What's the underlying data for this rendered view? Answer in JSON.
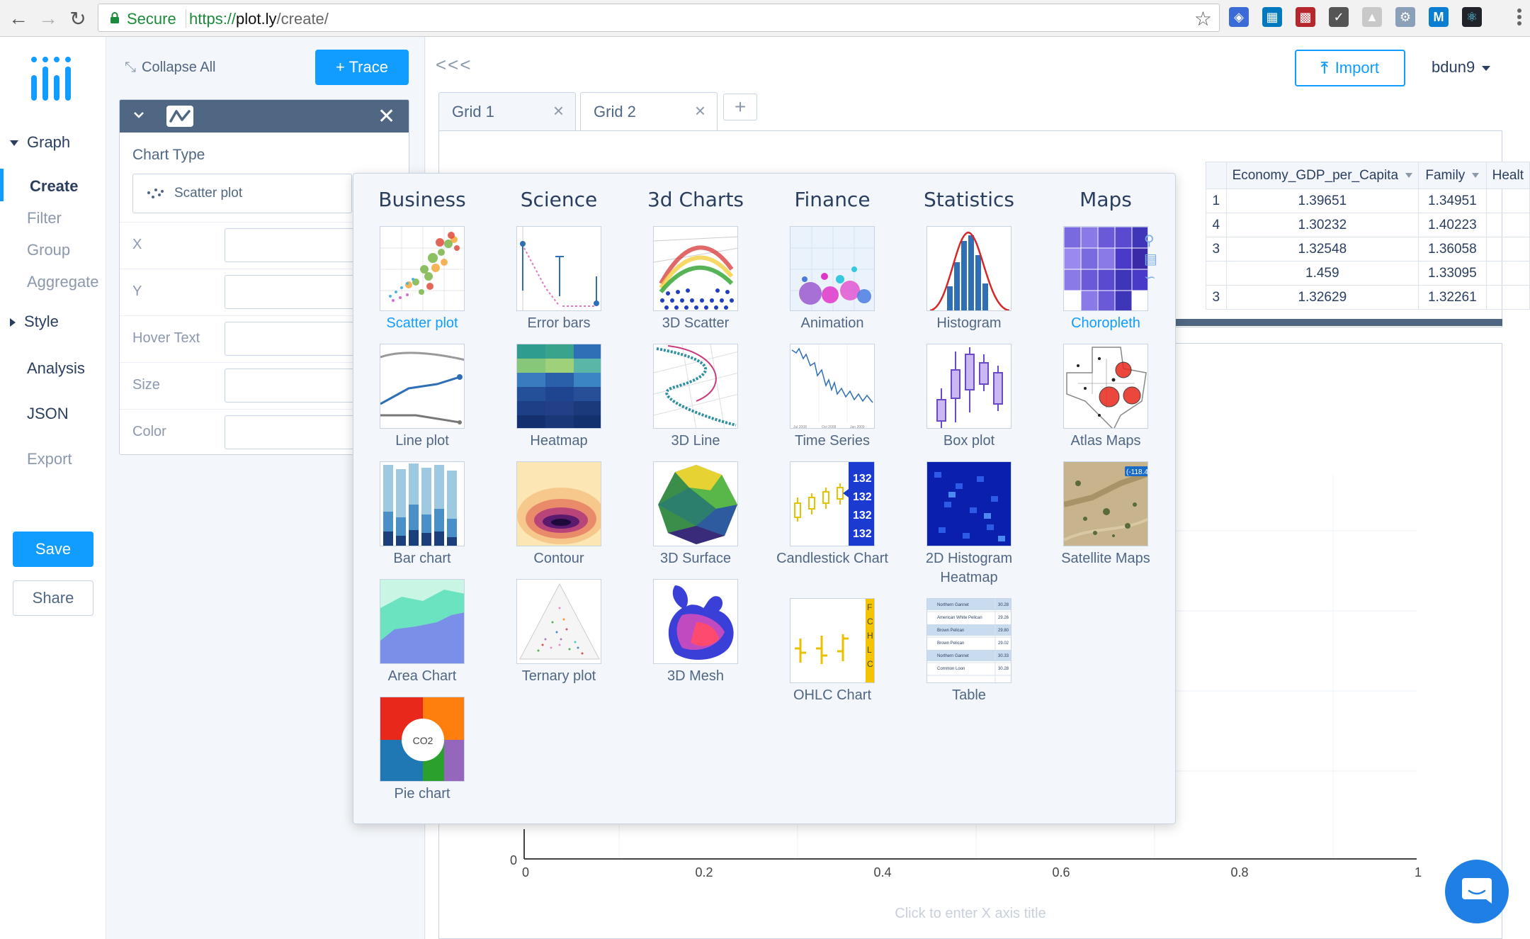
{
  "browser": {
    "secure_label": "Secure",
    "url_scheme": "https://",
    "url_host": "plot.ly",
    "url_path": "/create/"
  },
  "nav": {
    "graph": "Graph",
    "create": "Create",
    "filter": "Filter",
    "group": "Group",
    "aggregate": "Aggregate",
    "style": "Style",
    "analysis": "Analysis",
    "json": "JSON",
    "export": "Export",
    "save": "Save",
    "share": "Share"
  },
  "panel": {
    "collapse_all": "Collapse All",
    "add_trace": "+ Trace",
    "chart_type_label": "Chart Type",
    "chart_type_value": "Scatter plot",
    "fields": [
      "X",
      "Y",
      "Hover Text",
      "Size",
      "Color"
    ]
  },
  "main": {
    "collapse_arrows": "<<<",
    "import_label": "Import",
    "user": "bdun9",
    "tabs": [
      "Grid 1",
      "Grid 2"
    ],
    "tab_add": "+"
  },
  "grid": {
    "partial_cells": [
      "1",
      "4",
      "3",
      "",
      "3"
    ],
    "columns": [
      "Economy_GDP_per_Capita",
      "Family",
      "Healt"
    ],
    "rows": [
      [
        "1.39651",
        "1.34951"
      ],
      [
        "1.30232",
        "1.40223"
      ],
      [
        "1.32548",
        "1.36058"
      ],
      [
        "1.459",
        "1.33095"
      ],
      [
        "1.32629",
        "1.32261"
      ]
    ]
  },
  "plot": {
    "x_ticks": [
      "0",
      "0.2",
      "0.4",
      "0.6",
      "0.8",
      "1"
    ],
    "y_zero": "0",
    "x_axis_title": "Click to enter X axis title"
  },
  "chart_types": [
    {
      "category": "Business",
      "items": [
        "Scatter plot",
        "Line plot",
        "Bar chart",
        "Area Chart",
        "Pie chart"
      ]
    },
    {
      "category": "Science",
      "items": [
        "Error bars",
        "Heatmap",
        "Contour",
        "Ternary plot"
      ]
    },
    {
      "category": "3d Charts",
      "items": [
        "3D Scatter",
        "3D Line",
        "3D Surface",
        "3D Mesh"
      ]
    },
    {
      "category": "Finance",
      "items": [
        "Animation",
        "Time Series",
        "Candlestick Chart",
        "OHLC Chart"
      ]
    },
    {
      "category": "Statistics",
      "items": [
        "Histogram",
        "Box plot",
        "2D Histogram Heatmap",
        "Table"
      ]
    },
    {
      "category": "Maps",
      "items": [
        "Choropleth",
        "Atlas Maps",
        "Satellite Maps"
      ]
    }
  ],
  "colors": {
    "accent": "#119dff",
    "header": "#506784",
    "text": "#2a3f5f"
  }
}
